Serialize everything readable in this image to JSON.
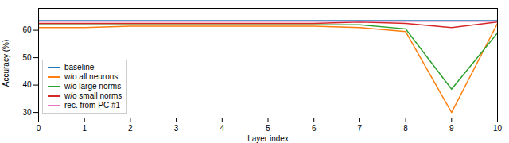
{
  "chart_data": {
    "type": "line",
    "xlabel": "Layer index",
    "ylabel": "Accuracy (%)",
    "x": [
      0,
      1,
      2,
      3,
      4,
      5,
      6,
      7,
      8,
      9,
      10
    ],
    "series": [
      {
        "name": "baseline",
        "color": "#1f77b4",
        "values": [
          63.5,
          63.5,
          63.5,
          63.5,
          63.5,
          63.5,
          63.5,
          63.5,
          63.5,
          63.5,
          63.5
        ]
      },
      {
        "name": "w/o all neurons",
        "color": "#ff7f0e",
        "values": [
          61.0,
          61.0,
          61.5,
          61.5,
          61.5,
          61.5,
          61.5,
          61.0,
          59.5,
          30.0,
          62.5
        ]
      },
      {
        "name": "w/o large norms",
        "color": "#2ca02c",
        "values": [
          62.0,
          62.0,
          62.0,
          62.0,
          62.0,
          62.0,
          62.0,
          62.0,
          60.5,
          38.5,
          59.0
        ]
      },
      {
        "name": "w/o small norms",
        "color": "#d62728",
        "values": [
          62.5,
          62.5,
          62.5,
          62.5,
          62.5,
          62.5,
          62.5,
          63.0,
          62.5,
          61.0,
          63.0
        ]
      },
      {
        "name": "rec. from PC #1",
        "color": "#e377c2",
        "values": [
          63.3,
          63.3,
          63.3,
          63.3,
          63.3,
          63.3,
          63.3,
          63.3,
          63.3,
          63.3,
          63.3
        ]
      }
    ],
    "xlim": [
      0,
      10
    ],
    "ylim": [
      28,
      68
    ],
    "xticks": [
      0,
      1,
      2,
      3,
      4,
      5,
      6,
      7,
      8,
      9,
      10
    ],
    "yticks": [
      30,
      40,
      50,
      60
    ],
    "legend": "lower left",
    "grid": false
  }
}
